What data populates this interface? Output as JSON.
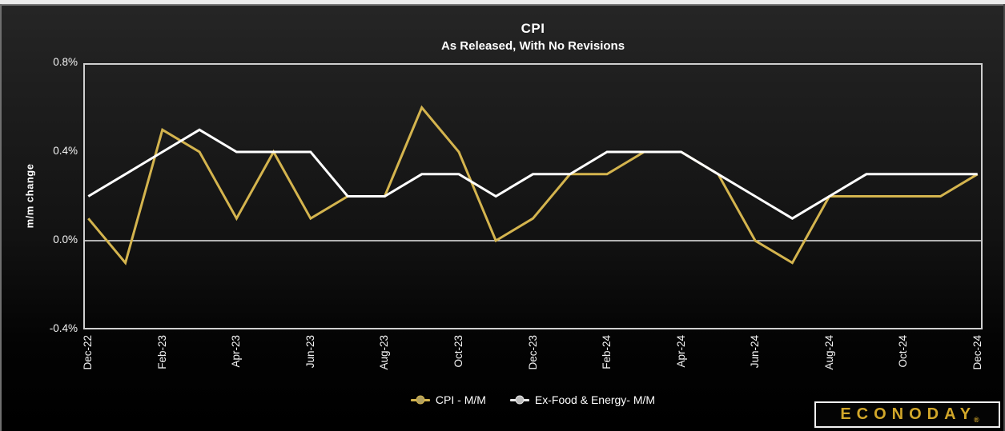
{
  "header": {
    "title": "CPI",
    "subtitle": "As Released, With No Revisions"
  },
  "colors": {
    "cpi_line": "#d4b44e",
    "core_line": "#ffffff",
    "cpi_marker_fill": "#b2a05e",
    "core_marker_fill": "#bcbcbc",
    "plot_frame": "#cfcfcf",
    "zero_line": "#e8e8e8",
    "logo_gold": "#d2a72a"
  },
  "chart_data": {
    "type": "line",
    "title": "CPI",
    "subtitle": "As Released, With No Revisions",
    "ylabel": "m/m change",
    "ylim": [
      -0.4,
      0.8
    ],
    "y_ticks": [
      0.8,
      0.4,
      0.0,
      -0.4
    ],
    "y_tick_labels": [
      "0.8%",
      "0.4%",
      "0.0%",
      "-0.4%"
    ],
    "grid": "zero-line-only",
    "legend_position": "bottom-center",
    "categories": [
      "Dec-22",
      "Jan-23",
      "Feb-23",
      "Mar-23",
      "Apr-23",
      "May-23",
      "Jun-23",
      "Jul-23",
      "Aug-23",
      "Sep-23",
      "Oct-23",
      "Nov-23",
      "Dec-23",
      "Jan-24",
      "Feb-24",
      "Mar-24",
      "Apr-24",
      "May-24",
      "Jun-24",
      "Jul-24",
      "Aug-24",
      "Sep-24",
      "Oct-24",
      "Nov-24",
      "Dec-24"
    ],
    "x_tick_labels": [
      "Dec-22",
      "Feb-23",
      "Apr-23",
      "Jun-23",
      "Aug-23",
      "Oct-23",
      "Dec-23",
      "Feb-24",
      "Apr-24",
      "Jun-24",
      "Aug-24",
      "Oct-24",
      "Dec-24"
    ],
    "series": [
      {
        "name": "CPI - M/M",
        "color": "#d4b44e",
        "values": [
          0.1,
          -0.1,
          0.5,
          0.4,
          0.1,
          0.4,
          0.1,
          0.2,
          0.2,
          0.6,
          0.4,
          0.0,
          0.1,
          0.3,
          0.3,
          0.4,
          0.4,
          0.3,
          0.0,
          -0.1,
          0.2,
          0.2,
          0.2,
          0.2,
          0.3
        ]
      },
      {
        "name": "Ex-Food & Energy- M/M",
        "color": "#ffffff",
        "values": [
          0.2,
          0.3,
          0.4,
          0.5,
          0.4,
          0.4,
          0.4,
          0.2,
          0.2,
          0.3,
          0.3,
          0.2,
          0.3,
          0.3,
          0.4,
          0.4,
          0.4,
          0.3,
          0.2,
          0.1,
          0.2,
          0.3,
          0.3,
          0.3,
          0.3
        ]
      }
    ]
  },
  "legend": {
    "items": [
      {
        "label": "CPI - M/M",
        "line_color": "#d4b44e",
        "marker_fill": "#b2a05e"
      },
      {
        "label": "Ex-Food & Energy- M/M",
        "line_color": "#e8e8e8",
        "marker_fill": "#bcbcbc"
      }
    ]
  },
  "branding": {
    "logo_text": "ECONODAY",
    "registered_mark": "®"
  }
}
